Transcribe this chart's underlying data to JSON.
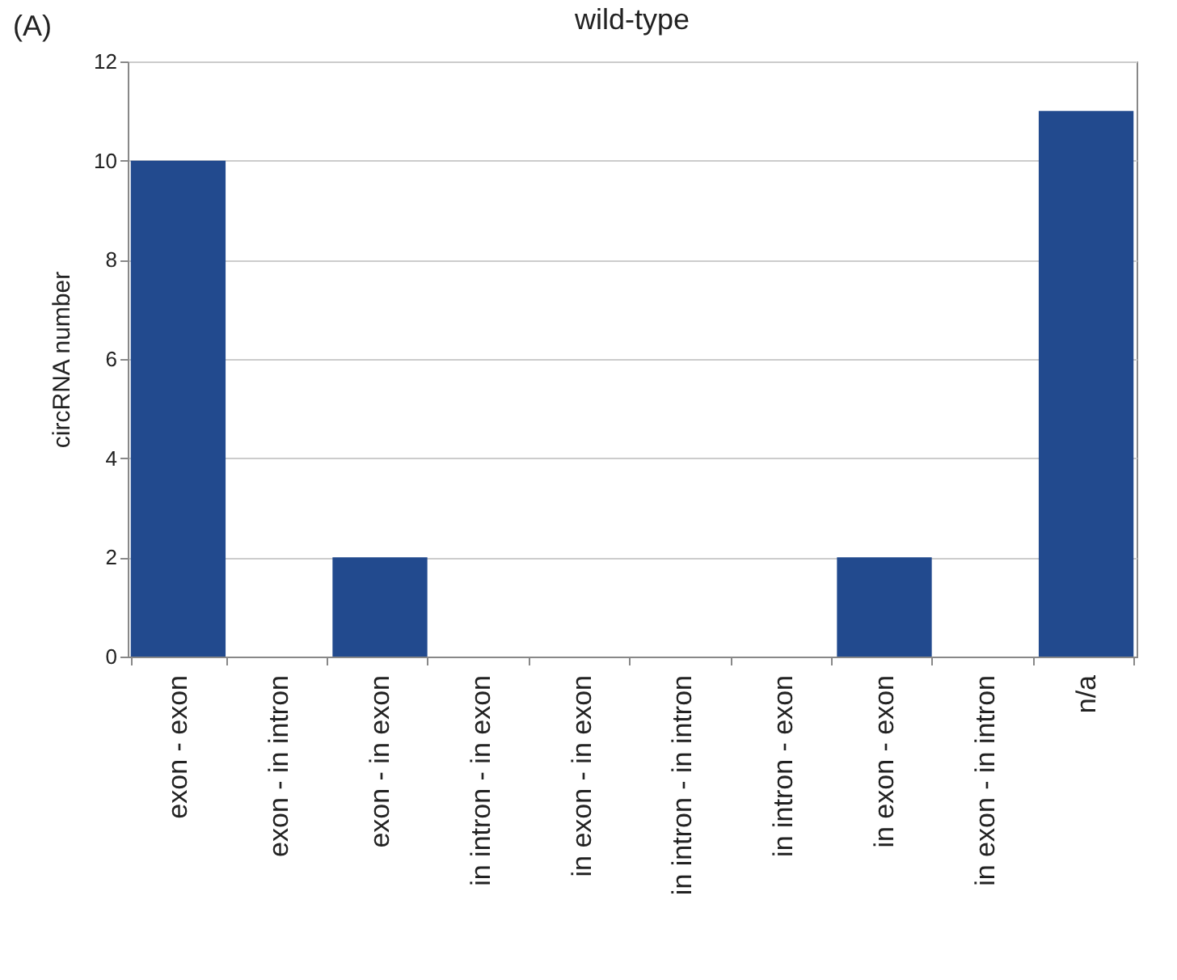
{
  "chart_data": {
    "type": "bar",
    "title": "wild-type",
    "ylabel": "circRNA number",
    "annotations": [
      "(A)"
    ],
    "categories": [
      "exon - exon",
      "exon - in intron",
      "exon - in exon",
      "in intron - in exon",
      "in exon - in exon",
      "in intron - in intron",
      "in intron - exon",
      "in exon - exon",
      "in exon - in intron",
      "n/a"
    ],
    "values": [
      10,
      0,
      2,
      0,
      0,
      0,
      0,
      2,
      0,
      11
    ],
    "color": "#224a8e",
    "ylim": [
      0,
      12
    ],
    "yticks": [
      0,
      2,
      4,
      6,
      8,
      10,
      12
    ],
    "grid": "y"
  }
}
